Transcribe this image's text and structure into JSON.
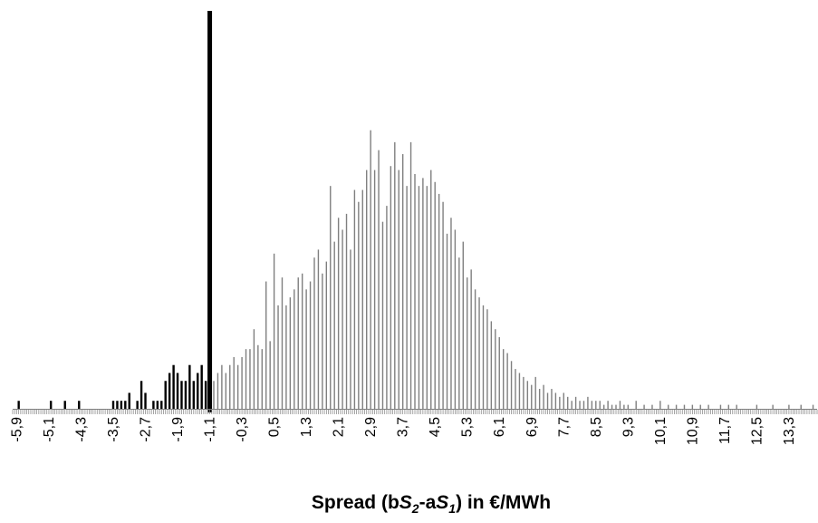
{
  "chart_data": {
    "type": "bar",
    "title": "",
    "xlabel": {
      "prefix": "Spread (b",
      "s2": "S",
      "s2_sub": "2",
      "mid": "-a",
      "s1": "S",
      "s1_sub": "1",
      "suffix": ") in €/MWh"
    },
    "ylabel": "",
    "x_range": [
      -6.0,
      14.0
    ],
    "bin_width": 0.05,
    "threshold_x": -1.1,
    "colors": {
      "below_threshold": "#000000",
      "above_threshold": "#7f7f7f",
      "threshold_line": "#000000",
      "axis": "#7f7f7f"
    },
    "tick_labels": [
      "-5,9",
      "-5,1",
      "-4,3",
      "-3,5",
      "-2,7",
      "-1,9",
      "-1,1",
      "-0,3",
      "0,5",
      "1,3",
      "2,1",
      "2,9",
      "3,7",
      "4,5",
      "5,3",
      "6,1",
      "6,9",
      "7,7",
      "8,5",
      "9,3",
      "10,1",
      "10,9",
      "11,7",
      "12,5",
      "13,3"
    ],
    "tick_values": [
      -5.9,
      -5.1,
      -4.3,
      -3.5,
      -2.7,
      -1.9,
      -1.1,
      -0.3,
      0.5,
      1.3,
      2.1,
      2.9,
      3.7,
      4.5,
      5.3,
      6.1,
      6.9,
      7.7,
      8.5,
      9.3,
      10.1,
      10.9,
      11.7,
      12.5,
      13.3
    ],
    "ylim": [
      0,
      100
    ],
    "threshold_height": 100,
    "bars": [
      [
        -5.85,
        2
      ],
      [
        -5.05,
        2
      ],
      [
        -4.7,
        2
      ],
      [
        -4.35,
        2
      ],
      [
        -3.5,
        2
      ],
      [
        -3.4,
        2
      ],
      [
        -3.3,
        2
      ],
      [
        -3.2,
        2
      ],
      [
        -3.1,
        4
      ],
      [
        -2.9,
        2
      ],
      [
        -2.8,
        7
      ],
      [
        -2.7,
        4
      ],
      [
        -2.5,
        2
      ],
      [
        -2.4,
        2
      ],
      [
        -2.3,
        2
      ],
      [
        -2.2,
        7
      ],
      [
        -2.1,
        9
      ],
      [
        -2.0,
        11
      ],
      [
        -1.9,
        9
      ],
      [
        -1.8,
        7
      ],
      [
        -1.7,
        7
      ],
      [
        -1.6,
        11
      ],
      [
        -1.5,
        7
      ],
      [
        -1.4,
        9
      ],
      [
        -1.3,
        11
      ],
      [
        -1.2,
        7
      ],
      [
        -1.0,
        7
      ],
      [
        -0.9,
        9
      ],
      [
        -0.8,
        11
      ],
      [
        -0.7,
        9
      ],
      [
        -0.6,
        11
      ],
      [
        -0.5,
        13
      ],
      [
        -0.4,
        11
      ],
      [
        -0.3,
        13
      ],
      [
        -0.2,
        15
      ],
      [
        -0.1,
        15
      ],
      [
        0.0,
        20
      ],
      [
        0.1,
        16
      ],
      [
        0.2,
        15
      ],
      [
        0.3,
        32
      ],
      [
        0.4,
        17
      ],
      [
        0.5,
        39
      ],
      [
        0.6,
        26
      ],
      [
        0.7,
        33
      ],
      [
        0.8,
        26
      ],
      [
        0.9,
        28
      ],
      [
        1.0,
        30
      ],
      [
        1.1,
        33
      ],
      [
        1.2,
        34
      ],
      [
        1.3,
        30
      ],
      [
        1.4,
        32
      ],
      [
        1.5,
        38
      ],
      [
        1.6,
        40
      ],
      [
        1.7,
        34
      ],
      [
        1.8,
        37
      ],
      [
        1.9,
        56
      ],
      [
        2.0,
        42
      ],
      [
        2.1,
        48
      ],
      [
        2.2,
        45
      ],
      [
        2.3,
        49
      ],
      [
        2.4,
        40
      ],
      [
        2.5,
        55
      ],
      [
        2.6,
        52
      ],
      [
        2.7,
        55
      ],
      [
        2.8,
        60
      ],
      [
        2.9,
        70
      ],
      [
        3.0,
        60
      ],
      [
        3.1,
        65
      ],
      [
        3.2,
        47
      ],
      [
        3.3,
        51
      ],
      [
        3.4,
        61
      ],
      [
        3.5,
        67
      ],
      [
        3.6,
        60
      ],
      [
        3.7,
        64
      ],
      [
        3.8,
        56
      ],
      [
        3.9,
        67
      ],
      [
        4.0,
        59
      ],
      [
        4.1,
        56
      ],
      [
        4.2,
        58
      ],
      [
        4.3,
        56
      ],
      [
        4.4,
        60
      ],
      [
        4.5,
        57
      ],
      [
        4.6,
        54
      ],
      [
        4.7,
        52
      ],
      [
        4.8,
        44
      ],
      [
        4.9,
        48
      ],
      [
        5.0,
        45
      ],
      [
        5.1,
        38
      ],
      [
        5.2,
        42
      ],
      [
        5.3,
        33
      ],
      [
        5.4,
        35
      ],
      [
        5.5,
        30
      ],
      [
        5.6,
        28
      ],
      [
        5.7,
        26
      ],
      [
        5.8,
        25
      ],
      [
        5.9,
        22
      ],
      [
        6.0,
        20
      ],
      [
        6.1,
        18
      ],
      [
        6.2,
        15
      ],
      [
        6.3,
        14
      ],
      [
        6.4,
        12
      ],
      [
        6.5,
        10
      ],
      [
        6.6,
        9
      ],
      [
        6.7,
        8
      ],
      [
        6.8,
        7
      ],
      [
        6.9,
        6
      ],
      [
        7.0,
        8
      ],
      [
        7.1,
        5
      ],
      [
        7.2,
        6
      ],
      [
        7.3,
        4
      ],
      [
        7.4,
        5
      ],
      [
        7.5,
        4
      ],
      [
        7.6,
        3
      ],
      [
        7.7,
        4
      ],
      [
        7.8,
        3
      ],
      [
        7.9,
        2
      ],
      [
        8.0,
        3
      ],
      [
        8.1,
        2
      ],
      [
        8.2,
        2
      ],
      [
        8.3,
        3
      ],
      [
        8.4,
        2
      ],
      [
        8.5,
        2
      ],
      [
        8.6,
        2
      ],
      [
        8.7,
        1
      ],
      [
        8.8,
        2
      ],
      [
        8.9,
        1
      ],
      [
        9.0,
        1
      ],
      [
        9.1,
        2
      ],
      [
        9.2,
        1
      ],
      [
        9.3,
        1
      ],
      [
        9.5,
        2
      ],
      [
        9.7,
        1
      ],
      [
        9.9,
        1
      ],
      [
        10.1,
        2
      ],
      [
        10.3,
        1
      ],
      [
        10.5,
        1
      ],
      [
        10.7,
        1
      ],
      [
        10.9,
        1
      ],
      [
        11.1,
        1
      ],
      [
        11.3,
        1
      ],
      [
        11.6,
        1
      ],
      [
        11.8,
        1
      ],
      [
        12.0,
        1
      ],
      [
        12.5,
        1
      ],
      [
        12.9,
        1
      ],
      [
        13.3,
        1
      ],
      [
        13.6,
        1
      ],
      [
        13.9,
        1
      ]
    ]
  }
}
